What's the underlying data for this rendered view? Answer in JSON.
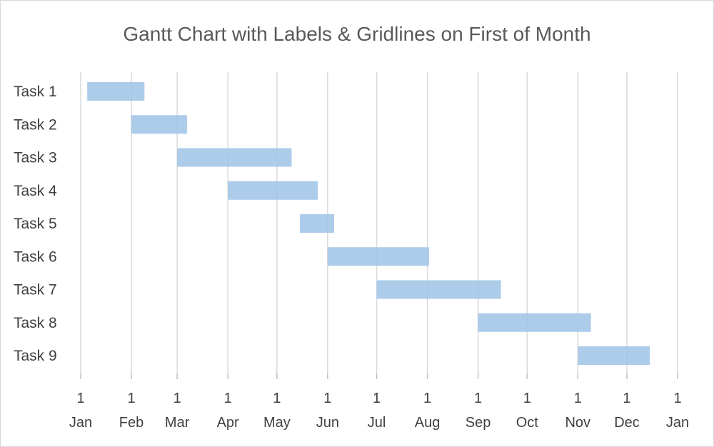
{
  "chart_data": {
    "type": "bar",
    "orientation": "horizontal",
    "subtype": "gantt",
    "title": "Gantt Chart with Labels & Gridlines on First of Month",
    "xlabel": "",
    "ylabel": "",
    "grid": true,
    "bar_color": "#9dc3e6",
    "xlim": [
      "2015-01-01",
      "2016-01-01"
    ],
    "x_ticks": [
      {
        "date": "2015-01-01",
        "day": "1",
        "month": "Jan"
      },
      {
        "date": "2015-02-01",
        "day": "1",
        "month": "Feb"
      },
      {
        "date": "2015-03-01",
        "day": "1",
        "month": "Mar"
      },
      {
        "date": "2015-04-01",
        "day": "1",
        "month": "Apr"
      },
      {
        "date": "2015-05-01",
        "day": "1",
        "month": "May"
      },
      {
        "date": "2015-06-01",
        "day": "1",
        "month": "Jun"
      },
      {
        "date": "2015-07-01",
        "day": "1",
        "month": "Jul"
      },
      {
        "date": "2015-08-01",
        "day": "1",
        "month": "Aug"
      },
      {
        "date": "2015-09-01",
        "day": "1",
        "month": "Sep"
      },
      {
        "date": "2015-10-01",
        "day": "1",
        "month": "Oct"
      },
      {
        "date": "2015-11-01",
        "day": "1",
        "month": "Nov"
      },
      {
        "date": "2015-12-01",
        "day": "1",
        "month": "Dec"
      },
      {
        "date": "2016-01-01",
        "day": "1",
        "month": "Jan"
      }
    ],
    "tasks": [
      {
        "label": "Task 1",
        "start": "2015-01-05",
        "end": "2015-02-09"
      },
      {
        "label": "Task 2",
        "start": "2015-02-01",
        "end": "2015-03-07"
      },
      {
        "label": "Task 3",
        "start": "2015-03-01",
        "end": "2015-05-10"
      },
      {
        "label": "Task 4",
        "start": "2015-04-01",
        "end": "2015-05-26"
      },
      {
        "label": "Task 5",
        "start": "2015-05-15",
        "end": "2015-06-05"
      },
      {
        "label": "Task 6",
        "start": "2015-06-01",
        "end": "2015-08-02"
      },
      {
        "label": "Task 7",
        "start": "2015-07-01",
        "end": "2015-09-15"
      },
      {
        "label": "Task 8",
        "start": "2015-09-01",
        "end": "2015-11-09"
      },
      {
        "label": "Task 9",
        "start": "2015-11-01",
        "end": "2015-12-15"
      }
    ]
  }
}
